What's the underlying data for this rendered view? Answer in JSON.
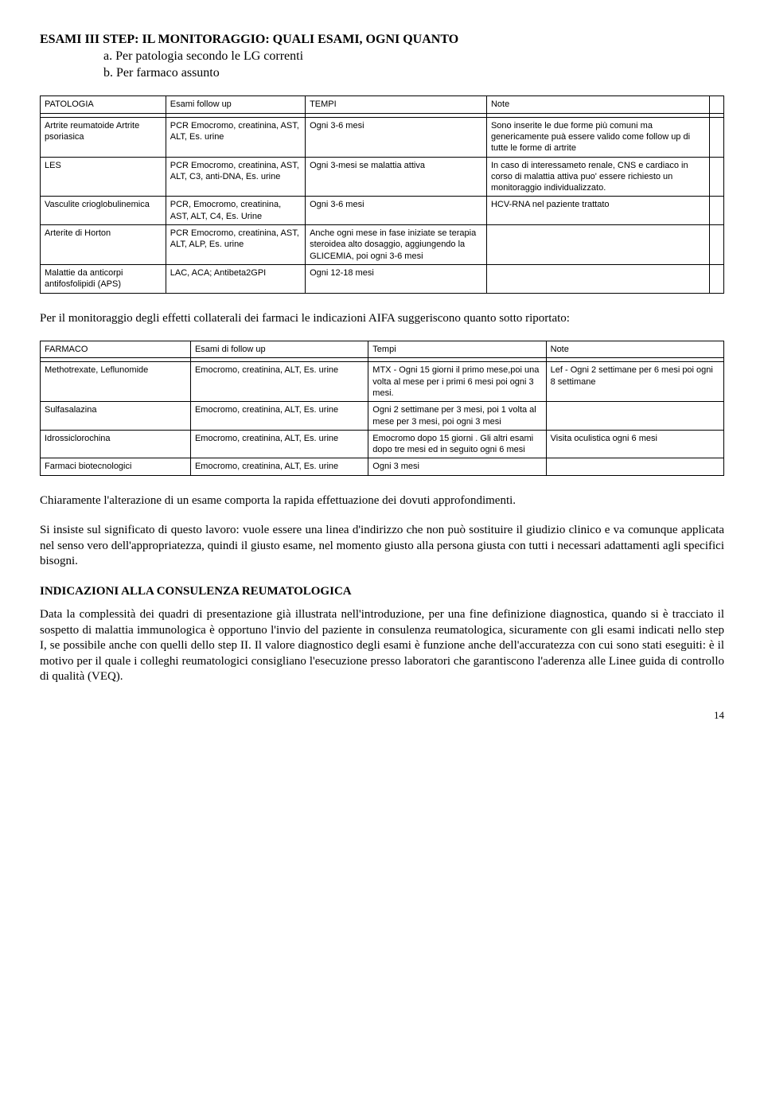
{
  "title": {
    "main": "ESAMI III STEP: IL MONITORAGGIO: QUALI ESAMI, OGNI QUANTO",
    "sub_a": "a. Per patologia secondo le LG correnti",
    "sub_b": "b. Per farmaco assunto"
  },
  "table1": {
    "headers": [
      "PATOLOGIA",
      "Esami follow up",
      "TEMPI",
      "Note",
      ""
    ],
    "rows": [
      [
        "Artrite reumatoide Artrite psoriasica",
        "PCR Emocromo, creatinina, AST, ALT, Es. urine",
        "Ogni 3-6 mesi",
        "Sono inserite le due forme più comuni ma genericamente puà essere valido come follow up di tutte le forme di artrite",
        ""
      ],
      [
        "LES",
        "PCR Emocromo, creatinina, AST, ALT, C3, anti-DNA, Es. urine",
        "Ogni 3-mesi se malattia attiva",
        "In caso di interessameto renale, CNS e cardiaco in corso di malattia attiva puo' essere richiesto un monitoraggio individualizzato.",
        ""
      ],
      [
        "Vasculite crioglobulinemica",
        "PCR, Emocromo, creatinina, AST, ALT, C4, Es. Urine",
        "Ogni 3-6 mesi",
        "HCV-RNA nel paziente trattato",
        ""
      ],
      [
        "Arterite di Horton",
        "PCR Emocromo, creatinina, AST, ALT, ALP, Es. urine",
        "Anche ogni mese in fase iniziate se terapia steroidea alto dosaggio, aggiungendo la GLICEMIA, poi ogni 3-6 mesi",
        "",
        ""
      ],
      [
        "Malattie da anticorpi antifosfolipidi (APS)",
        "LAC, ACA; Antibeta2GPI",
        "Ogni 12-18 mesi",
        "",
        ""
      ]
    ]
  },
  "mid_para": "Per il monitoraggio degli effetti collaterali dei farmaci le indicazioni AIFA suggeriscono quanto sotto riportato:",
  "table2": {
    "headers": [
      "FARMACO",
      "Esami di follow up",
      "Tempi",
      "Note"
    ],
    "rows": [
      [
        "Methotrexate, Leflunomide",
        "Emocromo, creatinina, ALT, Es. urine",
        "MTX - Ogni 15 giorni il primo mese,poi una volta al mese per i primi 6 mesi poi ogni 3 mesi.",
        "Lef - Ogni 2 settimane per 6 mesi poi ogni 8 settimane"
      ],
      [
        "Sulfasalazina",
        "Emocromo, creatinina, ALT, Es. urine",
        "Ogni 2 settimane per 3 mesi, poi 1 volta al mese per 3 mesi, poi ogni 3 mesi",
        ""
      ],
      [
        "Idrossiclorochina",
        "Emocromo, creatinina, ALT, Es. urine",
        "Emocromo dopo 15 giorni . Gli altri esami dopo tre mesi ed in seguito ogni 6 mesi",
        "Visita oculistica ogni 6 mesi"
      ],
      [
        "Farmaci biotecnologici",
        "Emocromo, creatinina, ALT, Es. urine",
        "Ogni 3 mesi",
        ""
      ]
    ]
  },
  "para1": "Chiaramente l'alterazione di un esame comporta la rapida effettuazione dei dovuti approfondimenti.",
  "para2": "Si insiste sul significato di questo lavoro: vuole essere una linea d'indirizzo che non può sostituire il giudizio clinico e va comunque applicata nel senso vero dell'appropriatezza, quindi il giusto esame, nel momento giusto alla persona giusta con tutti i necessari adattamenti agli specifici bisogni.",
  "section_head": "INDICAZIONI ALLA CONSULENZA REUMATOLOGICA",
  "para3": "Data la complessità dei quadri di presentazione già illustrata nell'introduzione, per una fine definizione diagnostica, quando si è tracciato il sospetto di malattia immunologica è opportuno l'invio del paziente in consulenza reumatologica, sicuramente con gli esami indicati nello step I, se possibile anche con quelli dello step II. Il valore diagnostico degli esami è funzione anche dell'accuratezza con cui sono stati eseguiti: è il motivo per il quale i colleghi reumatologici consigliano l'esecuzione presso laboratori che garantiscono l'aderenza alle Linee guida di controllo di qualità (VEQ).",
  "page_number": "14"
}
